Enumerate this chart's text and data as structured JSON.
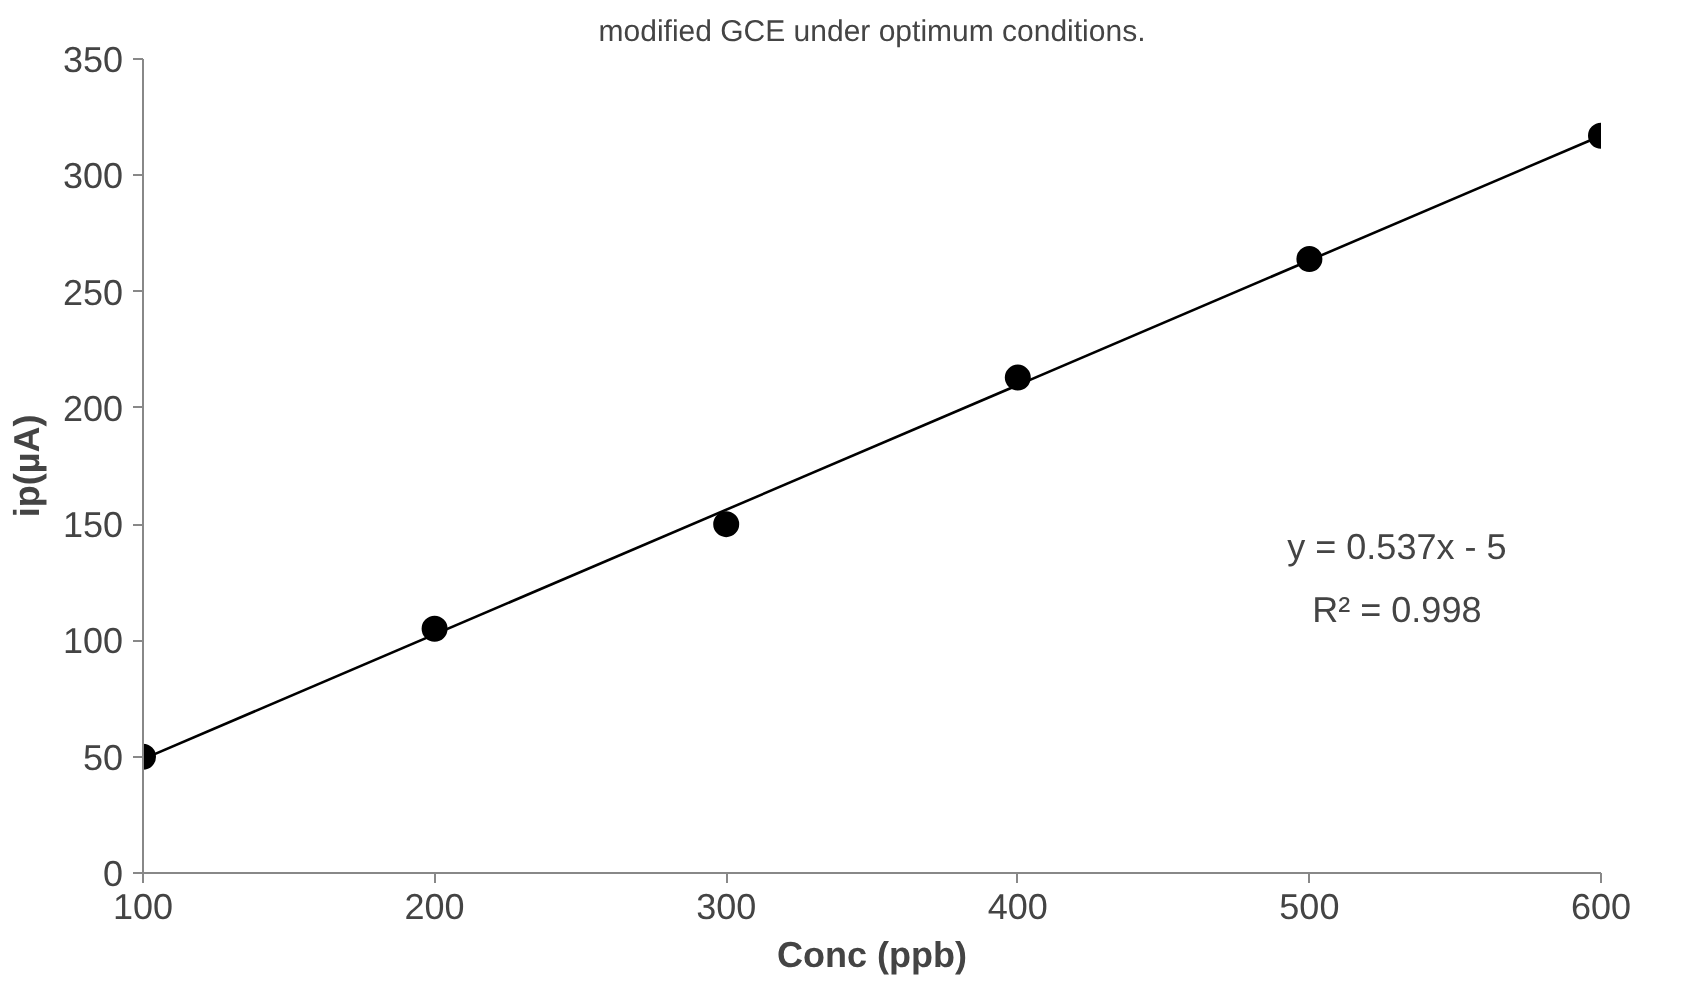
{
  "chart_data": {
    "type": "scatter",
    "title": "modified GCE under optimum conditions.",
    "xlabel": "Conc (ppb)",
    "ylabel": "ip(µA)",
    "x": [
      100,
      200,
      300,
      400,
      500,
      600
    ],
    "series": [
      {
        "color": "#000000",
        "marker": "circle",
        "values": [
          50,
          105,
          150,
          213,
          264,
          317
        ]
      },
      {
        "type": "line",
        "color": "#000000",
        "x": [
          100,
          600
        ],
        "values": [
          49,
          317
        ],
        "marker": "none"
      }
    ],
    "xlim": [
      100,
      600
    ],
    "xticks": [
      100,
      200,
      300,
      400,
      500,
      600
    ],
    "ylim": [
      0,
      350
    ],
    "yticks": [
      0,
      50,
      100,
      150,
      200,
      250,
      300,
      350
    ],
    "grid": false,
    "annotations": [
      "y = 0.537x - 5",
      "R² = 0.998"
    ]
  }
}
